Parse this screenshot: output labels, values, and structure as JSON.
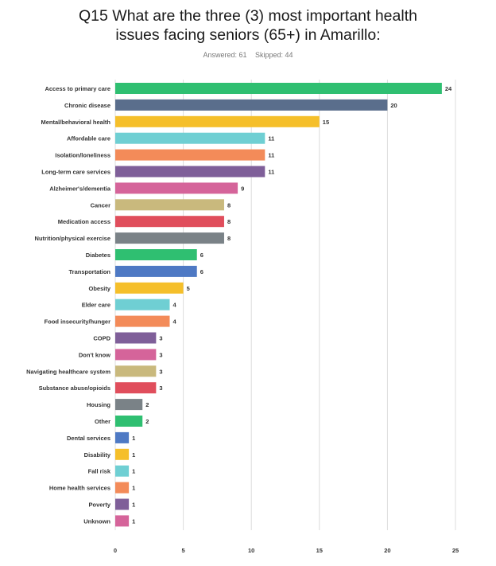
{
  "question": {
    "title": "Q15 What are the three (3) most important health issues facing seniors (65+) in Amarillo:",
    "answered": "Answered: 61",
    "skipped": "Skipped: 44"
  },
  "chart_data": {
    "type": "bar",
    "orientation": "horizontal",
    "xlim": [
      0,
      25
    ],
    "x_ticks": [
      0,
      5,
      10,
      15,
      20,
      25
    ],
    "grid": true,
    "categories": [
      "Access to primary care",
      "Chronic disease",
      "Mental/behavioral health",
      "Affordable care",
      "Isolation/loneliness",
      "Long-term care services",
      "Alzheimer's/dementia",
      "Cancer",
      "Medication access",
      "Nutrition/physical exercise",
      "Diabetes",
      "Transportation",
      "Obesity",
      "Elder care",
      "Food insecurity/hunger",
      "COPD",
      "Don't know",
      "Navigating healthcare system",
      "Substance abuse/opioids",
      "Housing",
      "Other",
      "Dental services",
      "Disability",
      "Fall risk",
      "Home health services",
      "Poverty",
      "Unknown"
    ],
    "values": [
      24,
      20,
      15,
      11,
      11,
      11,
      9,
      8,
      8,
      8,
      6,
      6,
      5,
      4,
      4,
      3,
      3,
      3,
      3,
      2,
      2,
      1,
      1,
      1,
      1,
      1,
      1
    ],
    "colors": [
      "#2fbf71",
      "#5a6e8c",
      "#f5bf2a",
      "#6fcfd3",
      "#f38b59",
      "#7f5f99",
      "#d5649a",
      "#c9b97d",
      "#e04e5c",
      "#7a8287",
      "#2fbf71",
      "#4e79c4",
      "#f5bf2a",
      "#6fcfd3",
      "#f38b59",
      "#7f5f99",
      "#d5649a",
      "#c9b97d",
      "#e04e5c",
      "#7a8287",
      "#2fbf71",
      "#4e79c4",
      "#f5bf2a",
      "#6fcfd3",
      "#f38b59",
      "#7f5f99",
      "#d5649a"
    ]
  }
}
